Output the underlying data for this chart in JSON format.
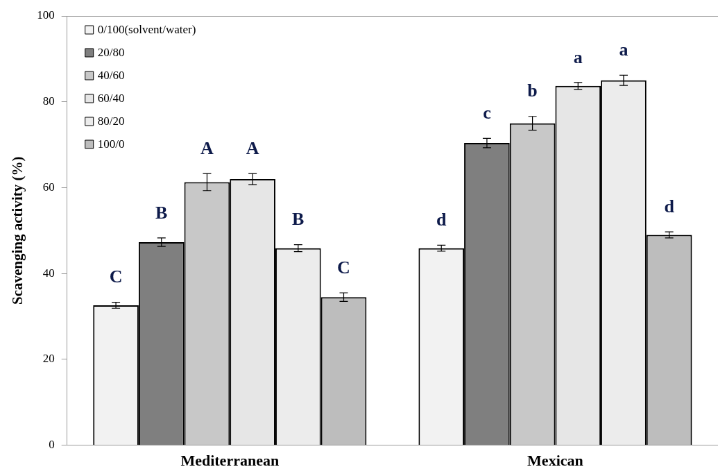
{
  "chart_data": {
    "type": "bar",
    "ylabel": "Scavenging activity (%)",
    "categories": [
      "Mediterranean",
      "Mexican"
    ],
    "series": [
      {
        "name": "0/100(solvent/water)",
        "color": "#f2f2f2",
        "values": [
          32.6,
          45.9
        ],
        "errors": [
          0.7,
          0.7
        ],
        "value_labels": [
          "C",
          "d"
        ]
      },
      {
        "name": "20/80",
        "color": "#7f7f7f",
        "values": [
          47.3,
          70.4
        ],
        "errors": [
          1.0,
          1.1
        ],
        "value_labels": [
          "B",
          "c"
        ]
      },
      {
        "name": "40/60",
        "color": "#c8c8c8",
        "values": [
          61.3,
          75.0
        ],
        "errors": [
          2.0,
          1.6
        ],
        "value_labels": [
          "A",
          "b"
        ]
      },
      {
        "name": "60/40",
        "color": "#e6e6e6",
        "values": [
          62.0,
          83.7
        ],
        "errors": [
          1.3,
          0.8
        ],
        "value_labels": [
          "A",
          "a"
        ]
      },
      {
        "name": "80/20",
        "color": "#ececec",
        "values": [
          45.9,
          85.0
        ],
        "errors": [
          0.8,
          1.2
        ],
        "value_labels": [
          "B",
          "a"
        ]
      },
      {
        "name": "100/0",
        "color": "#bdbdbd",
        "values": [
          34.5,
          49.0
        ],
        "errors": [
          1.0,
          0.7
        ],
        "value_labels": [
          "C",
          "d"
        ]
      }
    ],
    "ylim": [
      0,
      100
    ],
    "yticks": [
      0,
      20,
      40,
      60,
      80,
      100
    ],
    "grid": false,
    "legend": "top left"
  }
}
